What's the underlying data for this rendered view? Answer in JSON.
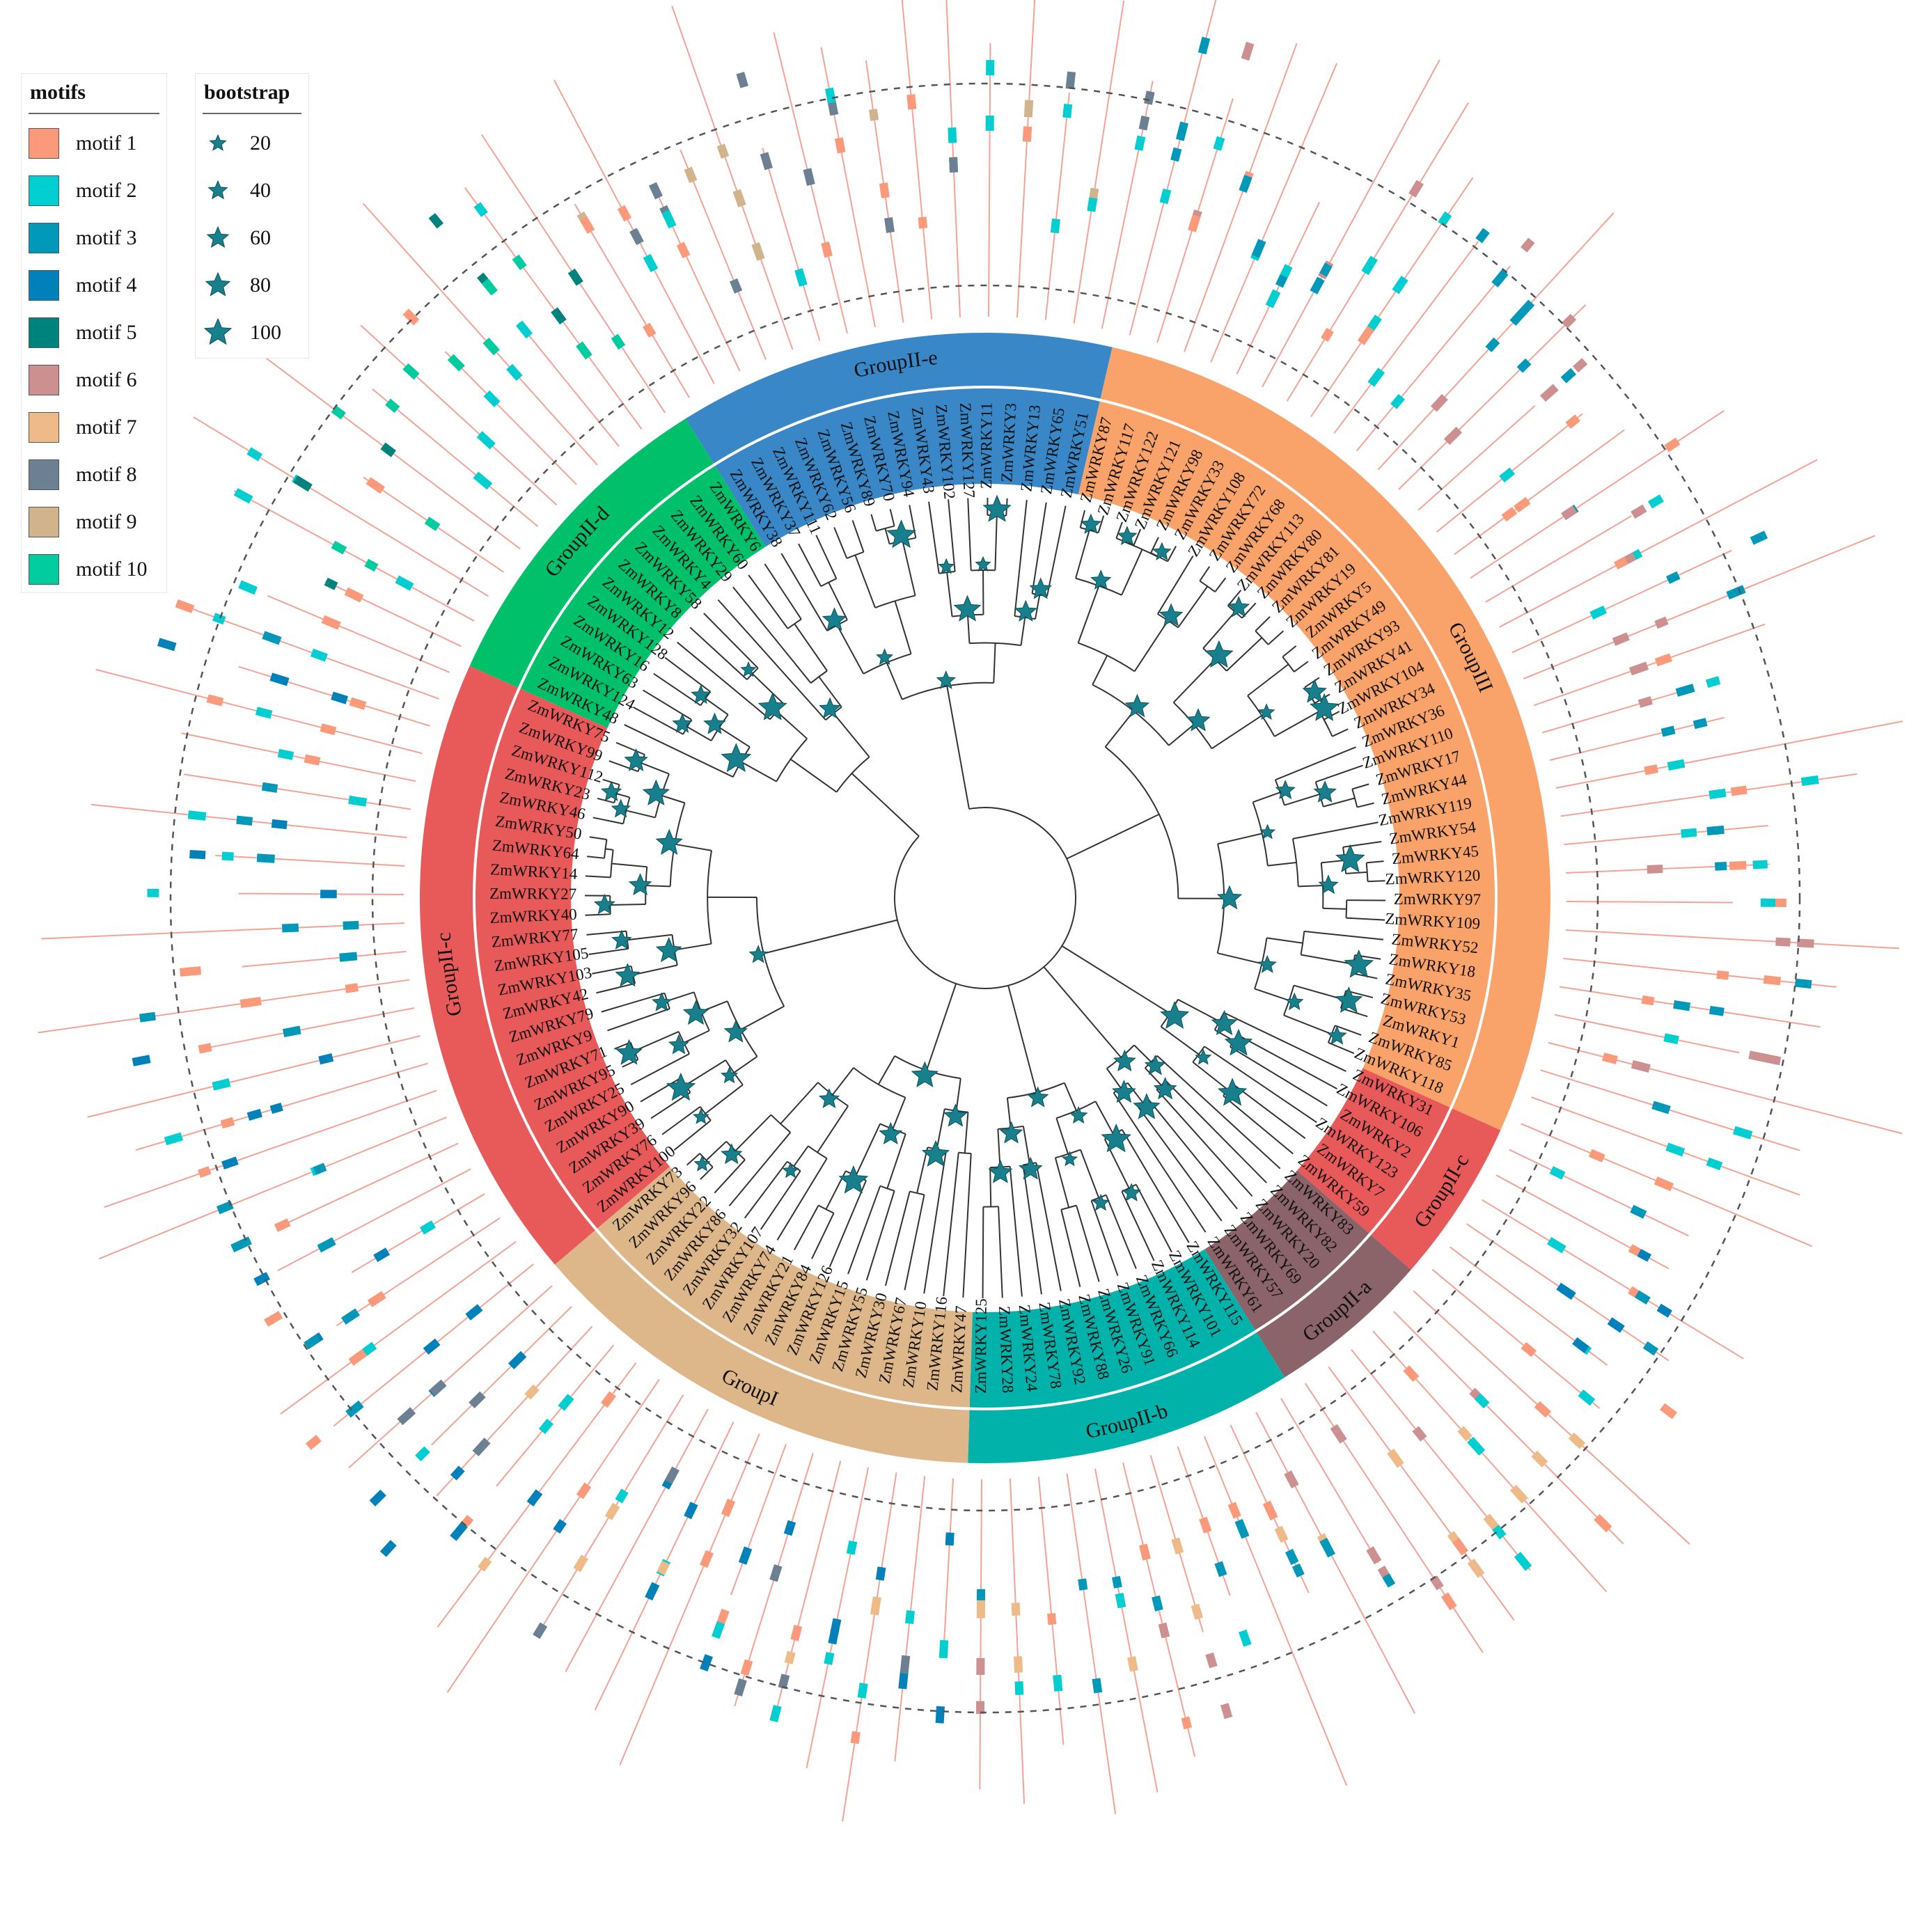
{
  "legend_motifs": {
    "title": "motifs",
    "items": [
      {
        "label": "motif 1",
        "color": "#FA9A7A"
      },
      {
        "label": "motif 2",
        "color": "#00CED1"
      },
      {
        "label": "motif 3",
        "color": "#0098B8"
      },
      {
        "label": "motif 4",
        "color": "#0081BA"
      },
      {
        "label": "motif 5",
        "color": "#00827D"
      },
      {
        "label": "motif 6",
        "color": "#CD9090"
      },
      {
        "label": "motif 7",
        "color": "#EEBB88"
      },
      {
        "label": "motif 8",
        "color": "#6B8092"
      },
      {
        "label": "motif 9",
        "color": "#D2B48C"
      },
      {
        "label": "motif 10",
        "color": "#00CCA0"
      }
    ]
  },
  "legend_bootstrap": {
    "title": "bootstrap",
    "items": [
      {
        "label": "20",
        "value": 20
      },
      {
        "label": "40",
        "value": 40
      },
      {
        "label": "60",
        "value": 60
      },
      {
        "label": "80",
        "value": 80
      },
      {
        "label": "100",
        "value": 100
      }
    ]
  },
  "groups": [
    {
      "name": "GroupII-e",
      "color": "#3A87C7",
      "members": [
        "ZmWRKY38",
        "ZmWRKY37",
        "ZmWRKY111",
        "ZmWRKY62",
        "ZmWRKY56",
        "ZmWRKY89",
        "ZmWRKY70",
        "ZmWRKY94",
        "ZmWRKY43",
        "ZmWRKY102",
        "ZmWRKY127",
        "ZmWRKY11",
        "ZmWRKY3",
        "ZmWRKY13",
        "ZmWRKY65",
        "ZmWRKY51"
      ]
    },
    {
      "name": "GroupIII",
      "color": "#F9A36A",
      "members": [
        "ZmWRKY87",
        "ZmWRKY117",
        "ZmWRKY122",
        "ZmWRKY121",
        "ZmWRKY98",
        "ZmWRKY33",
        "ZmWRKY108",
        "ZmWRKY72",
        "ZmWRKY68",
        "ZmWRKY113",
        "ZmWRKY80",
        "ZmWRKY81",
        "ZmWRKY19",
        "ZmWRKY5",
        "ZmWRKY49",
        "ZmWRKY93",
        "ZmWRKY41",
        "ZmWRKY104",
        "ZmWRKY34",
        "ZmWRKY36",
        "ZmWRKY110",
        "ZmWRKY17",
        "ZmWRKY44",
        "ZmWRKY119",
        "ZmWRKY54",
        "ZmWRKY45",
        "ZmWRKY120",
        "ZmWRKY97",
        "ZmWRKY109",
        "ZmWRKY52",
        "ZmWRKY18",
        "ZmWRKY35",
        "ZmWRKY53",
        "ZmWRKY1",
        "ZmWRKY85",
        "ZmWRKY118"
      ]
    },
    {
      "name": "GroupII-c",
      "color": "#E85A5A",
      "members": [
        "ZmWRKY31",
        "ZmWRKY106",
        "ZmWRKY2",
        "ZmWRKY123",
        "ZmWRKY7",
        "ZmWRKY59"
      ]
    },
    {
      "name": "GroupII-a",
      "color": "#8B646A",
      "members": [
        "ZmWRKY83",
        "ZmWRKY82",
        "ZmWRKY20",
        "ZmWRKY69",
        "ZmWRKY57",
        "ZmWRKY61"
      ]
    },
    {
      "name": "GroupII-b",
      "color": "#00B2AA",
      "members": [
        "ZmWRKY115",
        "ZmWRKY101",
        "ZmWRKY114",
        "ZmWRKY66",
        "ZmWRKY91",
        "ZmWRKY26",
        "ZmWRKY88",
        "ZmWRKY92",
        "ZmWRKY78",
        "ZmWRKY24",
        "ZmWRKY28",
        "ZmWRKY125"
      ]
    },
    {
      "name": "GroupI",
      "color": "#DDB68A",
      "members": [
        "ZmWRKY47",
        "ZmWRKY116",
        "ZmWRKY10",
        "ZmWRKY67",
        "ZmWRKY30",
        "ZmWRKY55",
        "ZmWRKY15",
        "ZmWRKY126",
        "ZmWRKY84",
        "ZmWRKY21",
        "ZmWRKY74",
        "ZmWRKY107",
        "ZmWRKY32",
        "ZmWRKY86",
        "ZmWRKY22",
        "ZmWRKY96",
        "ZmWRKY73"
      ]
    },
    {
      "name": "GroupII-c",
      "color": "#E85A5A",
      "members": [
        "ZmWRKY100",
        "ZmWRKY76",
        "ZmWRKY39",
        "ZmWRKY90",
        "ZmWRKY25",
        "ZmWRKY95",
        "ZmWRKY71",
        "ZmWRKY9",
        "ZmWRKY79",
        "ZmWRKY42",
        "ZmWRKY103",
        "ZmWRKY105",
        "ZmWRKY77",
        "ZmWRKY40",
        "ZmWRKY27",
        "ZmWRKY14",
        "ZmWRKY64",
        "ZmWRKY50",
        "ZmWRKY46",
        "ZmWRKY23",
        "ZmWRKY112",
        "ZmWRKY99",
        "ZmWRKY75"
      ]
    },
    {
      "name": "GroupII-d",
      "color": "#00C06A",
      "members": [
        "ZmWRKY48",
        "ZmWRKY124",
        "ZmWRKY63",
        "ZmWRKY16",
        "ZmWRKY128",
        "ZmWRKY12",
        "ZmWRKY8",
        "ZmWRKY58",
        "ZmWRKY4",
        "ZmWRKY29",
        "ZmWRKY60",
        "ZmWRKY6"
      ]
    }
  ]
}
